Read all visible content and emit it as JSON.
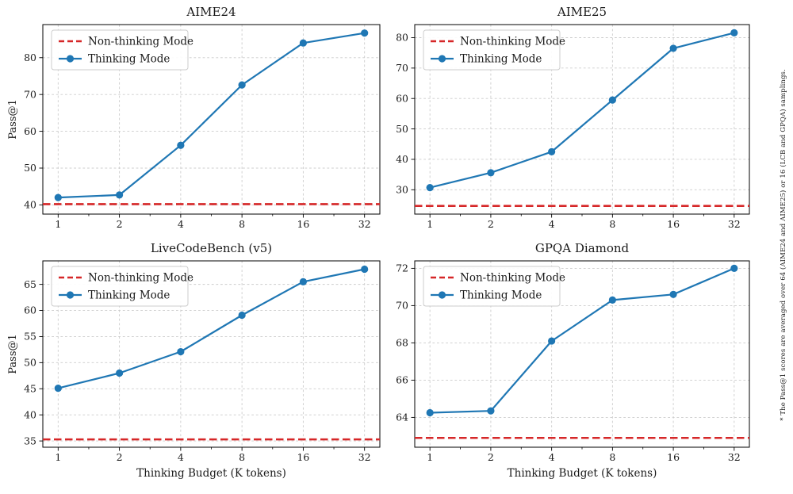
{
  "figure": {
    "caption_side": "* The Pass@1 scores are averaged over 64 (AIME24 and AIME25) or 16 (LCB and GPQA) samplings.",
    "colors": {
      "thinking_line": "#1f77b4",
      "non_thinking_line": "#d62728",
      "grid": "#cccccc",
      "spine": "#000000",
      "text": "#1a1a1a"
    }
  },
  "legend": {
    "non_thinking_label": "Non-thinking Mode",
    "thinking_label": "Thinking Mode"
  },
  "chart_data": [
    {
      "type": "line",
      "title": "AIME24",
      "xlabel": "",
      "ylabel": "Pass@1",
      "x_scale": "log2",
      "x": [
        1,
        2,
        4,
        8,
        16,
        32
      ],
      "x_ticklabels": [
        "1",
        "2",
        "4",
        "8",
        "16",
        "32"
      ],
      "series": [
        {
          "name": "Thinking Mode",
          "style": "line-markers",
          "values": [
            42.0,
            42.7,
            56.2,
            72.6,
            84.0,
            86.7
          ]
        },
        {
          "name": "Non-thinking Mode",
          "style": "dashed-hline",
          "value": 40.2
        }
      ],
      "yticks": [
        40,
        50,
        60,
        70,
        80
      ],
      "ylim": [
        37.5,
        89.0
      ],
      "grid": true,
      "legend_position": "upper left"
    },
    {
      "type": "line",
      "title": "AIME25",
      "xlabel": "",
      "ylabel": "",
      "x_scale": "log2",
      "x": [
        1,
        2,
        4,
        8,
        16,
        32
      ],
      "x_ticklabels": [
        "1",
        "2",
        "4",
        "8",
        "16",
        "32"
      ],
      "series": [
        {
          "name": "Thinking Mode",
          "style": "line-markers",
          "values": [
            30.7,
            35.6,
            42.5,
            59.5,
            76.5,
            81.6
          ]
        },
        {
          "name": "Non-thinking Mode",
          "style": "dashed-hline",
          "value": 24.7
        }
      ],
      "yticks": [
        30,
        40,
        50,
        60,
        70,
        80
      ],
      "ylim": [
        22.0,
        84.3
      ],
      "grid": true,
      "legend_position": "upper left"
    },
    {
      "type": "line",
      "title": "LiveCodeBench (v5)",
      "xlabel": "Thinking Budget (K tokens)",
      "ylabel": "Pass@1",
      "x_scale": "log2",
      "x": [
        1,
        2,
        4,
        8,
        16,
        32
      ],
      "x_ticklabels": [
        "1",
        "2",
        "4",
        "8",
        "16",
        "32"
      ],
      "series": [
        {
          "name": "Thinking Mode",
          "style": "line-markers",
          "values": [
            45.1,
            48.0,
            52.1,
            59.1,
            65.5,
            67.9
          ]
        },
        {
          "name": "Non-thinking Mode",
          "style": "dashed-hline",
          "value": 35.3
        }
      ],
      "yticks": [
        35,
        40,
        45,
        50,
        55,
        60,
        65
      ],
      "ylim": [
        33.8,
        69.5
      ],
      "grid": true,
      "legend_position": "upper left"
    },
    {
      "type": "line",
      "title": "GPQA Diamond",
      "xlabel": "Thinking Budget (K tokens)",
      "ylabel": "",
      "x_scale": "log2",
      "x": [
        1,
        2,
        4,
        8,
        16,
        32
      ],
      "x_ticklabels": [
        "1",
        "2",
        "4",
        "8",
        "16",
        "32"
      ],
      "series": [
        {
          "name": "Thinking Mode",
          "style": "line-markers",
          "values": [
            64.25,
            64.35,
            68.1,
            70.3,
            70.6,
            72.0
          ]
        },
        {
          "name": "Non-thinking Mode",
          "style": "dashed-hline",
          "value": 62.9
        }
      ],
      "yticks": [
        64,
        66,
        68,
        70,
        72
      ],
      "ylim": [
        62.4,
        72.4
      ],
      "grid": true,
      "legend_position": "upper left"
    }
  ]
}
